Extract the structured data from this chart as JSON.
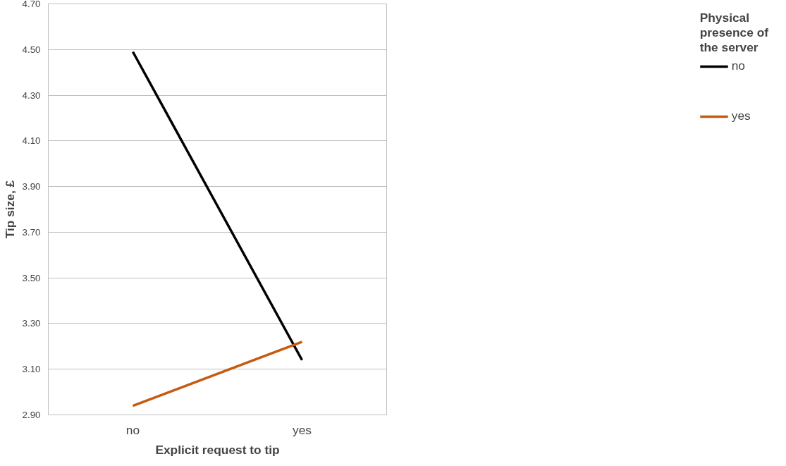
{
  "chart_data": {
    "type": "line",
    "xlabel": "Explicit request to tip",
    "ylabel": "Tip size, £",
    "legend_title": "Physical presence of the server",
    "categories": [
      "no",
      "yes"
    ],
    "series": [
      {
        "name": "no",
        "color": "#000000",
        "values": [
          4.49,
          3.14
        ]
      },
      {
        "name": "yes",
        "color": "#c55a11",
        "values": [
          2.94,
          3.22
        ]
      }
    ],
    "ylim": [
      2.9,
      4.7
    ],
    "yticks": [
      {
        "value": 2.9,
        "label": "2.90"
      },
      {
        "value": 3.1,
        "label": "3.10"
      },
      {
        "value": 3.3,
        "label": "3.30"
      },
      {
        "value": 3.5,
        "label": "3.50"
      },
      {
        "value": 3.7,
        "label": "3.70"
      },
      {
        "value": 3.9,
        "label": "3.90"
      },
      {
        "value": 4.1,
        "label": "4.10"
      },
      {
        "value": 4.3,
        "label": "4.30"
      },
      {
        "value": 4.5,
        "label": "4.50"
      },
      {
        "value": 4.7,
        "label": "4.70"
      }
    ],
    "grid": "y",
    "legend": "right",
    "marker": "none",
    "line_style": "solid"
  }
}
